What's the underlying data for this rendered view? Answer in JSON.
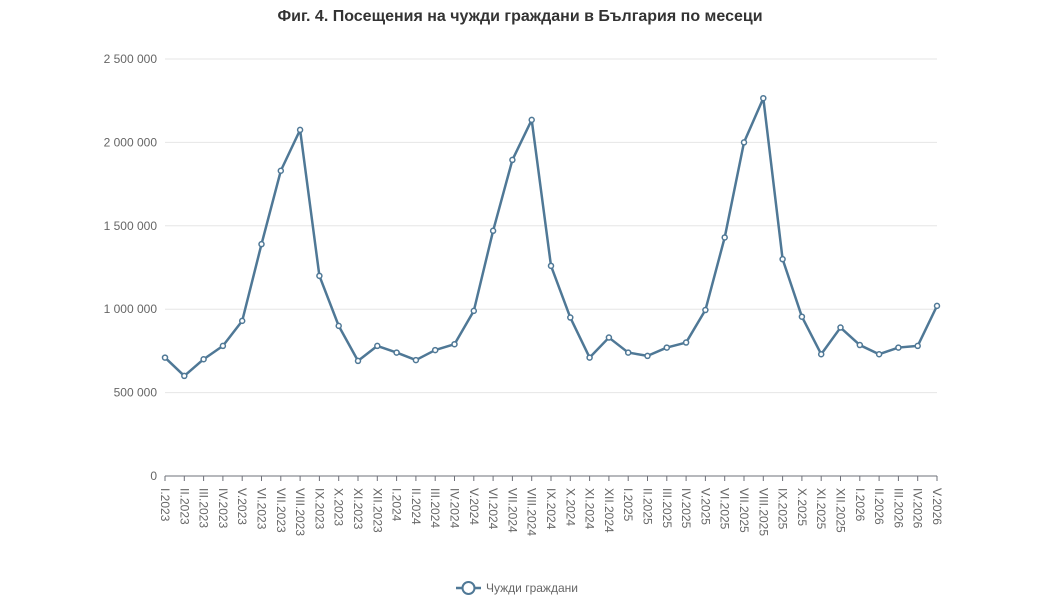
{
  "chart_data": {
    "type": "line",
    "title": "Фиг. 4. Посещения на чужди граждани в България по месеци",
    "categories": [
      "I.2023",
      "II.2023",
      "III.2023",
      "IV.2023",
      "V.2023",
      "VI.2023",
      "VII.2023",
      "VIII.2023",
      "IX.2023",
      "X.2023",
      "XI.2023",
      "XII.2023",
      "I.2024",
      "II.2024",
      "III.2024",
      "IV.2024",
      "V.2024",
      "VI.2024",
      "VII.2024",
      "VIII.2024",
      "IX.2024",
      "X.2024",
      "XI.2024",
      "XII.2024",
      "I.2025",
      "II.2025",
      "III.2025",
      "IV.2025",
      "V.2025",
      "VI.2025",
      "VII.2025",
      "VIII.2025",
      "IX.2025",
      "X.2025",
      "XI.2025",
      "XII.2025",
      "I.2026",
      "II.2026",
      "III.2026",
      "IV.2026",
      "V.2026"
    ],
    "series": [
      {
        "name": "Чужди граждани",
        "color": "#4f7896",
        "values": [
          710000,
          600000,
          700000,
          780000,
          930000,
          1390000,
          1830000,
          2075000,
          1200000,
          900000,
          690000,
          780000,
          740000,
          695000,
          755000,
          790000,
          990000,
          1470000,
          1895000,
          2135000,
          1260000,
          950000,
          710000,
          830000,
          740000,
          720000,
          770000,
          800000,
          995000,
          1430000,
          2000000,
          2265000,
          1300000,
          955000,
          730000,
          890000,
          785000,
          730000,
          770000,
          780000,
          1020000
        ]
      }
    ],
    "ylim": [
      0,
      2500000
    ],
    "yticks": [
      0,
      {
        "value": 500000,
        "label": "500 000"
      },
      {
        "value": 1000000,
        "label": "1 000 000"
      },
      {
        "value": 1500000,
        "label": "1 500 000"
      },
      {
        "value": 2000000,
        "label": "2 000 000"
      },
      {
        "value": 2500000,
        "label": "2 500 000"
      }
    ],
    "grid": true
  }
}
